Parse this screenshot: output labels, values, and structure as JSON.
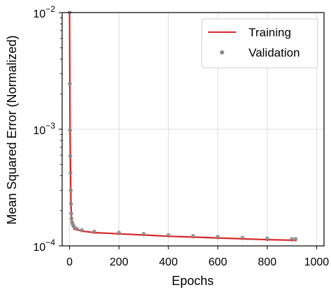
{
  "chart_data": {
    "type": "line",
    "title": "",
    "xlabel": "Epochs",
    "ylabel": "Mean Squared Error (Normalized)",
    "xlim": [
      -30,
      1030
    ],
    "ylim": [
      0.0001,
      0.01
    ],
    "yscale": "log",
    "grid": true,
    "legend_position": "top-right",
    "xticks": [
      0,
      200,
      400,
      600,
      800,
      1000
    ],
    "xtick_labels": [
      "0",
      "200",
      "400",
      "600",
      "800",
      "1000"
    ],
    "ytick_labels": [
      {
        "base": "10",
        "exp": "−2",
        "value": 0.01
      },
      {
        "base": "10",
        "exp": "−3",
        "value": 0.001
      },
      {
        "base": "10",
        "exp": "−4",
        "value": 0.0001
      }
    ],
    "series": [
      {
        "name": "Training",
        "style": "line",
        "color": "#d62728",
        "x": [
          0,
          1,
          2,
          3,
          4,
          5,
          6,
          7,
          8,
          10,
          12,
          15,
          20,
          30,
          50,
          100,
          200,
          300,
          400,
          500,
          600,
          700,
          800,
          900,
          915
        ],
        "values": [
          0.01,
          0.0025,
          0.001,
          0.0006,
          0.00043,
          0.0003,
          0.00023,
          0.00019,
          0.00017,
          0.000158,
          0.000152,
          0.000146,
          0.00014,
          0.000138,
          0.000134,
          0.00013,
          0.000127,
          0.000124,
          0.000121,
          0.000119,
          0.000117,
          0.000115,
          0.000113,
          0.000112,
          0.000112
        ]
      },
      {
        "name": "Validation",
        "style": "scatter",
        "color": "#8c8c8c",
        "x": [
          0,
          1,
          2,
          3,
          4,
          5,
          6,
          7,
          8,
          10,
          12,
          15,
          20,
          30,
          50,
          100,
          200,
          300,
          400,
          500,
          600,
          700,
          800,
          900,
          915
        ],
        "values": [
          0.01,
          0.00245,
          0.00098,
          0.00059,
          0.00042,
          0.0003,
          0.00023,
          0.00019,
          0.000172,
          0.00016,
          0.000155,
          0.00015,
          0.000145,
          0.00014,
          0.000137,
          0.000133,
          0.00013,
          0.000127,
          0.000124,
          0.000122,
          0.00012,
          0.000118,
          0.000116,
          0.000115,
          0.000115
        ]
      }
    ]
  }
}
